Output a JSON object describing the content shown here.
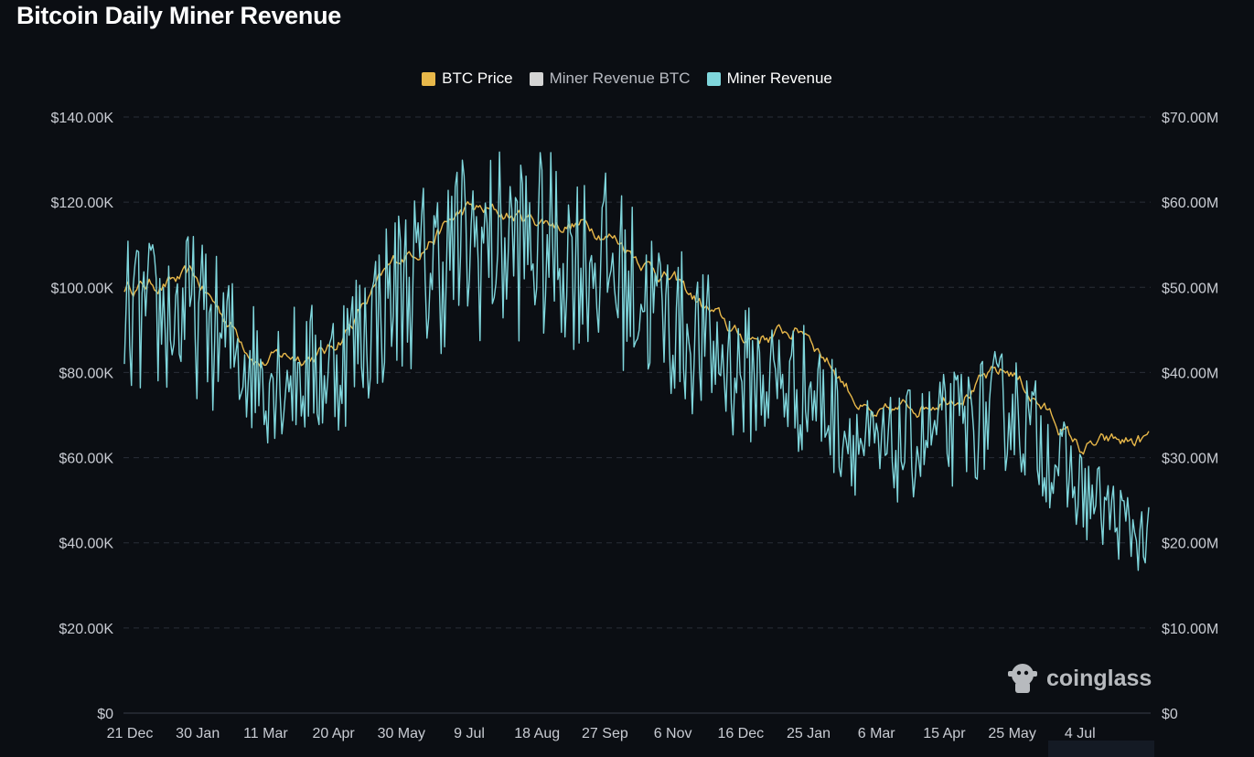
{
  "title": "Bitcoin Daily Miner Revenue",
  "legend": [
    {
      "name": "BTC Price",
      "color": "#e8b84a",
      "active": true
    },
    {
      "name": "Miner Revenue BTC",
      "color": "#d4d4d4",
      "active": false
    },
    {
      "name": "Miner Revenue",
      "color": "#7fd6dc",
      "active": true
    }
  ],
  "watermark": "coinglass",
  "chart_data": {
    "type": "line",
    "left_axis": {
      "ticks": [
        "$0",
        "$20.00K",
        "$40.00K",
        "$60.00K",
        "$80.00K",
        "$100.00K",
        "$120.00K",
        "$140.00K"
      ],
      "range": [
        0,
        140000
      ]
    },
    "right_axis": {
      "ticks": [
        "$0",
        "$10.00M",
        "$20.00M",
        "$30.00M",
        "$40.00M",
        "$50.00M",
        "$60.00M",
        "$70.00M"
      ],
      "range": [
        0,
        70000000
      ]
    },
    "x_ticks": [
      "21 Dec",
      "30 Jan",
      "11 Mar",
      "20 Apr",
      "30 May",
      "9 Jul",
      "18 Aug",
      "27 Sep",
      "6 Nov",
      "16 Dec",
      "25 Jan",
      "6 Mar",
      "15 Apr",
      "25 May",
      "4 Jul"
    ],
    "grid": true,
    "legend_position": "top-center",
    "series": [
      {
        "name": "BTC Price",
        "axis": "left",
        "color": "#e8b84a",
        "x": [
          "21 Dec",
          "30 Jan",
          "11 Mar",
          "20 Apr",
          "30 May",
          "9 Jul",
          "18 Aug",
          "27 Sep",
          "6 Nov",
          "16 Dec",
          "25 Jan",
          "6 Mar",
          "15 Apr",
          "25 May",
          "4 Jul",
          "end"
        ],
        "values": [
          100000,
          102000,
          83000,
          85000,
          106000,
          118000,
          116000,
          114000,
          102000,
          88000,
          90000,
          68000,
          75000,
          80000,
          62000,
          64000
        ]
      },
      {
        "name": "Miner Revenue",
        "axis": "right",
        "color": "#7fd6dc",
        "x": [
          "21 Dec",
          "30 Jan",
          "11 Mar",
          "20 Apr",
          "30 May",
          "9 Jul",
          "18 Aug",
          "27 Sep",
          "6 Nov",
          "16 Dec",
          "25 Jan",
          "6 Mar",
          "15 Apr",
          "25 May",
          "4 Jul",
          "end"
        ],
        "values": [
          46000000,
          47000000,
          40000000,
          40000000,
          50000000,
          55000000,
          55000000,
          53000000,
          46000000,
          40000000,
          38000000,
          30000000,
          33000000,
          36000000,
          26000000,
          20000000
        ]
      }
    ]
  }
}
